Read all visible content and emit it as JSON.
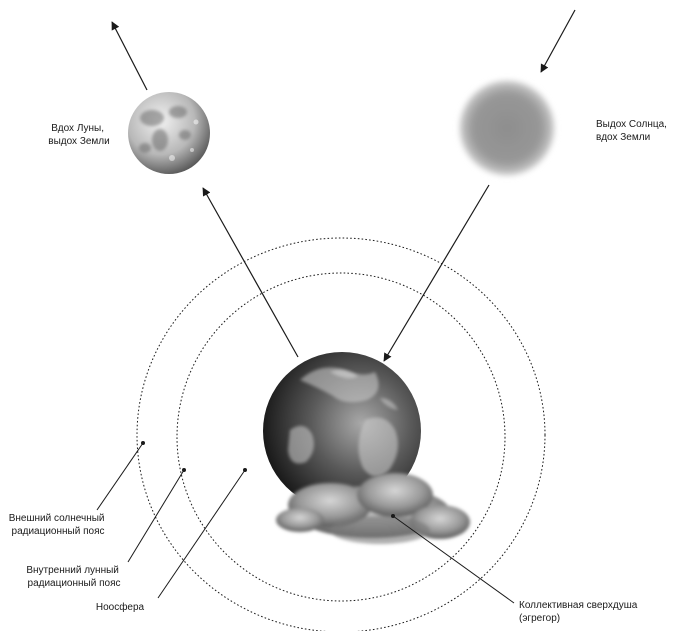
{
  "moon": {
    "label_line1": "Вдох Луны,",
    "label_line2": "выдох Земли"
  },
  "sun": {
    "label_line1": "Выдох Солнца,",
    "label_line2": "вдох Земли"
  },
  "outer_belt": {
    "label_line1": "Внешний солнечный",
    "label_line2": "радиационный пояс"
  },
  "inner_belt": {
    "label_line1": "Внутренний лунный",
    "label_line2": "радиационный пояс"
  },
  "noosphere": {
    "label": "Ноосфера"
  },
  "egregor": {
    "label_line1": "Коллективная сверхдуша",
    "label_line2": "(эгрегор)"
  },
  "colors": {
    "line": "#1a1a1a",
    "sun": "#8a8a8a",
    "earth_light": "#9a9a9a",
    "earth_dark": "#101010",
    "moon_light": "#e8e8e8",
    "moon_dark": "#4a4a4a"
  }
}
